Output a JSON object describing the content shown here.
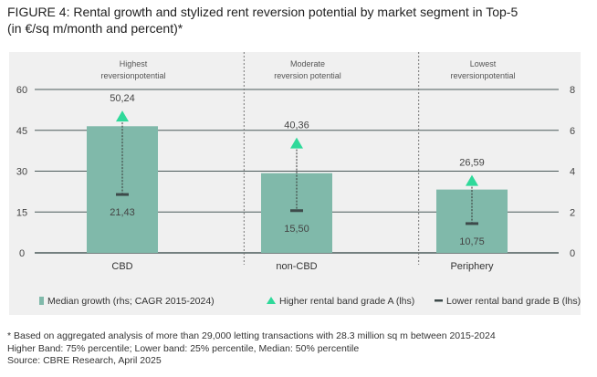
{
  "title_line1": "FIGURE 4: Rental growth and stylized rent reversion potential by market segment in Top-5",
  "title_line2": "(in €/sq m/month and percent)*",
  "colors": {
    "bar": "#80b9aa",
    "triangle": "#2fd99a",
    "marker": "#3d4a4a",
    "grid": "#4a5a5a"
  },
  "chart_data": {
    "type": "bar",
    "categories": [
      "CBD",
      "non-CBD",
      "Periphery"
    ],
    "segment_labels": [
      [
        "Highest",
        "reversionpotential"
      ],
      [
        "Moderate",
        "reversion potential"
      ],
      [
        "Lowest",
        "reversionpotential"
      ]
    ],
    "left_axis": {
      "ylim": [
        0,
        60
      ],
      "ticks": [
        "0",
        "15",
        "30",
        "45",
        "60"
      ]
    },
    "right_axis": {
      "ylim": [
        0,
        8
      ],
      "ticks": [
        "0",
        "2",
        "4",
        "6",
        "8"
      ]
    },
    "series": [
      {
        "name": "Median growth (rhs; CAGR 2015-2024)",
        "axis": "right",
        "values": [
          6.2,
          3.9,
          3.1
        ]
      },
      {
        "name": "Higher rental band grade A (lhs)",
        "axis": "left",
        "values": [
          50.24,
          40.36,
          26.59
        ],
        "labels": [
          "50,24",
          "40,36",
          "26,59"
        ]
      },
      {
        "name": "Lower rental band grade B (lhs)",
        "axis": "left",
        "values": [
          21.43,
          15.5,
          10.75
        ],
        "labels": [
          "21,43",
          "15,50",
          "10,75"
        ]
      }
    ]
  },
  "notes": [
    "* Based on aggregated analysis of more than 29,000 letting transactions with 28.3 million sq m between 2015-2024",
    "Higher Band: 75% percentile; Lower band: 25% percentile, Median: 50% percentile",
    "Source: CBRE Research, April 2025"
  ]
}
